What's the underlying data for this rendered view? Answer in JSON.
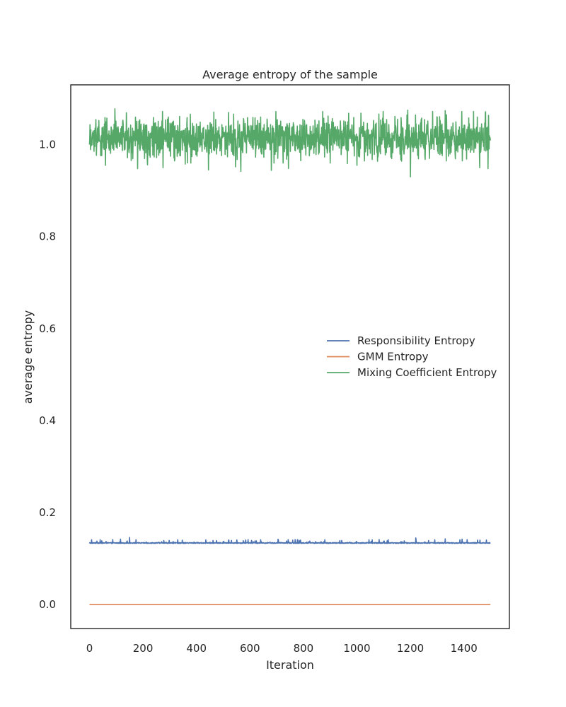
{
  "chart_data": {
    "type": "line",
    "title": "Average entropy of the sample",
    "xlabel": "Iteration",
    "ylabel": "average entropy",
    "xlim": [
      -70,
      1570
    ],
    "ylim": [
      -0.052,
      1.13
    ],
    "xticks": [
      0,
      200,
      400,
      600,
      800,
      1000,
      1200,
      1400
    ],
    "xtick_labels": [
      "0",
      "200",
      "400",
      "600",
      "800",
      "1000",
      "1200",
      "1400"
    ],
    "yticks": [
      0.0,
      0.2,
      0.4,
      0.6,
      0.8,
      1.0
    ],
    "ytick_labels": [
      "0.0",
      "0.2",
      "0.4",
      "0.6",
      "0.8",
      "1.0"
    ],
    "grid": false,
    "legend_position": "center-right",
    "n_points": 1500,
    "series": [
      {
        "name": "Responsibility Entropy",
        "color": "#4c72b0",
        "typical_value": 0.133,
        "approx_range": [
          0.131,
          0.147
        ],
        "sampled_x": [
          0,
          40,
          80,
          150,
          200,
          250,
          330,
          400,
          520,
          640,
          700,
          800,
          880,
          1000,
          1100,
          1220,
          1330,
          1400,
          1500
        ],
        "sampled_y": [
          0.133,
          0.141,
          0.135,
          0.146,
          0.134,
          0.135,
          0.141,
          0.134,
          0.14,
          0.141,
          0.134,
          0.135,
          0.141,
          0.134,
          0.138,
          0.145,
          0.143,
          0.134,
          0.135
        ]
      },
      {
        "name": "GMM Entropy",
        "color": "#dd8452",
        "typical_value": 0.0,
        "approx_range": [
          0.0,
          0.0
        ],
        "sampled_x": [
          0,
          1500
        ],
        "sampled_y": [
          0.0,
          0.0
        ]
      },
      {
        "name": "Mixing Coefficient Entropy",
        "color": "#55a868",
        "typical_value": 1.015,
        "approx_range": [
          0.93,
          1.078
        ],
        "sampled_x": [
          0,
          60,
          95,
          180,
          275,
          445,
          520,
          640,
          690,
          800,
          900,
          1000,
          1100,
          1190,
          1200,
          1300,
          1330,
          1450,
          1490,
          1500
        ],
        "sampled_y": [
          1.0,
          0.955,
          1.078,
          0.948,
          0.95,
          0.945,
          1.07,
          1.06,
          0.96,
          1.04,
          0.96,
          0.955,
          1.05,
          1.075,
          0.93,
          1.06,
          1.074,
          1.06,
          0.948,
          1.035
        ]
      }
    ]
  }
}
